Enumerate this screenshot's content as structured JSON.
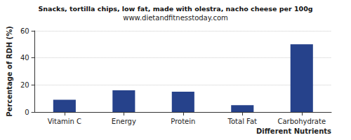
{
  "chart_data": {
    "type": "bar",
    "title": "Snacks, tortilla chips, low fat, made with olestra, nacho cheese per 100g",
    "subtitle": "www.dietandfitnesstoday.com",
    "x_label": "Different Nutrients",
    "y_label": "Percentage of RDH (%)",
    "categories": [
      "Vitamin C",
      "Energy",
      "Protein",
      "Total Fat",
      "Carbohydrate"
    ],
    "values": [
      9,
      16,
      15,
      5,
      50
    ],
    "color": "#26428b",
    "ylim": [
      0,
      60
    ],
    "yticks": [
      0,
      20,
      40,
      60
    ],
    "grid": true
  }
}
